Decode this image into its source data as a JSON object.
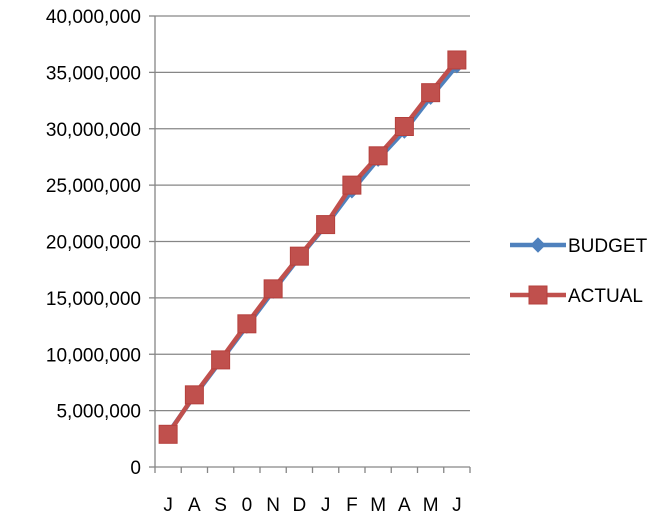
{
  "chart_data": {
    "type": "line",
    "title": "",
    "xlabel": "",
    "ylabel": "",
    "categories": [
      "J",
      "A",
      "S",
      "0",
      "N",
      "D",
      "J",
      "F",
      "M",
      "A",
      "M",
      "J"
    ],
    "ylim": [
      0,
      40000000
    ],
    "yticks": [
      0,
      5000000,
      10000000,
      15000000,
      20000000,
      25000000,
      30000000,
      35000000,
      40000000
    ],
    "ytick_labels": [
      "0",
      "5,000,000",
      "10,000,000",
      "15,000,000",
      "20,000,000",
      "25,000,000",
      "30,000,000",
      "35,000,000",
      "40,000,000"
    ],
    "grid": "horizontal",
    "legend": "right",
    "series": [
      {
        "name": "BUDGET",
        "color": "#4f81bd",
        "marker": "diamond",
        "values": [
          3000000,
          6300000,
          9400000,
          12500000,
          15600000,
          18600000,
          21400000,
          24500000,
          27300000,
          29800000,
          32800000,
          35600000
        ]
      },
      {
        "name": "ACTUAL",
        "color": "#c0504d",
        "marker": "square",
        "values": [
          2900000,
          6400000,
          9500000,
          12700000,
          15800000,
          18700000,
          21500000,
          25000000,
          27600000,
          30200000,
          33200000,
          36100000
        ]
      }
    ]
  }
}
